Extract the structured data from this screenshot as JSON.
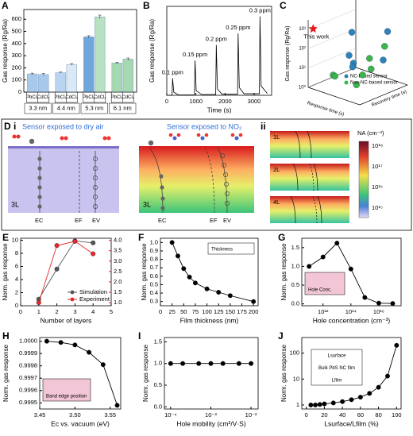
{
  "chart_data": [
    {
      "label": "A",
      "type": "bar",
      "ylabel": "Gas response (Rg/Ra)",
      "categories": [
        "PbCl₂",
        "CdCl₂",
        "PbCl₂",
        "CdCl₂",
        "PbCl₂",
        "CdCl₂",
        "PbCl₂",
        "CdCl₂"
      ],
      "groups": [
        "3.3 nm",
        "4.4 nm",
        "5.3 nm",
        "6.1 nm"
      ],
      "colors": [
        "#a9c9ea",
        "#a9c9ea",
        "#b8d4f0",
        "#dbe8f5",
        "#6fa6dc",
        "#b9e0c0",
        "#a6d9b0",
        "#a6d9b0"
      ],
      "values": [
        150,
        145,
        160,
        228,
        455,
        620,
        240,
        272
      ],
      "errors": [
        6,
        8,
        5,
        7,
        10,
        14,
        6,
        9
      ],
      "ylim": [
        0,
        680
      ],
      "yticks": [
        0,
        100,
        200,
        300,
        400,
        500,
        600
      ]
    },
    {
      "label": "B",
      "type": "line",
      "markers": false,
      "xlabel": "Time (s)",
      "ylabel": "Gas response (Rg/Ra)",
      "x": [
        0,
        180,
        200,
        240,
        400,
        950,
        970,
        1010,
        1200,
        1680,
        1700,
        1740,
        1900,
        2430,
        2450,
        2490,
        2650,
        3180,
        3200,
        3240,
        3450
      ],
      "series": [
        {
          "color": "#000000",
          "values": [
            0,
            0,
            220,
            40,
            5,
            5,
            450,
            60,
            10,
            10,
            650,
            80,
            15,
            15,
            800,
            100,
            20,
            20,
            1020,
            120,
            25
          ]
        }
      ],
      "peak_labels": [
        "0.1 ppm",
        "0.15 ppm",
        "0.2 ppm",
        "0.25 ppm",
        "0.3 ppm"
      ],
      "xlim": [
        0,
        3600
      ],
      "xticks": [
        0,
        1000,
        2000,
        3000
      ],
      "ylim": [
        0,
        1150
      ]
    },
    {
      "label": "C",
      "type": "scatter3d",
      "zlabel": "Gas response (Rg/Ra)",
      "xlabel": "Response time (s)",
      "ylabel": "Recovery time (s)",
      "xlim": [
        0,
        100
      ],
      "ylim": [
        0,
        100
      ],
      "zlim": [
        1,
        3000
      ],
      "zlog": true,
      "zticks": [
        {
          "value": 1,
          "label": "10⁰"
        },
        {
          "value": 10,
          "label": "10¹"
        },
        {
          "value": 100,
          "label": "10²"
        },
        {
          "value": 1000,
          "label": "10³"
        }
      ],
      "series": [
        {
          "name": "NC-based sensor",
          "color": "#2b83ba",
          "marker": "circle",
          "x": [
            20,
            60,
            80,
            40,
            70,
            90
          ],
          "y": [
            70,
            30,
            80,
            50,
            10,
            60
          ],
          "z": [
            200,
            30,
            600,
            8,
            150,
            40
          ]
        },
        {
          "name": "Non-NC-based sensor",
          "color": "#3cb44b",
          "marker": "circle",
          "x": [
            30,
            50,
            85,
            65,
            15,
            45,
            75
          ],
          "y": [
            20,
            60,
            40,
            90,
            40,
            80,
            20
          ],
          "z": [
            5,
            3,
            20,
            60,
            2,
            12,
            4
          ]
        },
        {
          "name": "This work",
          "color": "#e41a1c",
          "marker": "star",
          "x": [
            5
          ],
          "y": [
            5
          ],
          "z": [
            1020
          ]
        }
      ]
    },
    {
      "label": "E",
      "type": "line",
      "markers": true,
      "xlabel": "Number of layers",
      "ylabel": "Norm. gas response",
      "x": [
        1,
        2,
        3,
        4
      ],
      "series": [
        {
          "name": "Simulation",
          "color": "#555555",
          "values": [
            1.0,
            5.6,
            9.9,
            9.6
          ]
        },
        {
          "name": "Experiment",
          "color": "#e8262b",
          "axis": "y2",
          "values": [
            1.0,
            3.75,
            3.95,
            3.35
          ]
        }
      ],
      "xlim": [
        0,
        5
      ],
      "xticks": [
        0,
        1,
        2,
        3,
        4,
        5
      ],
      "ylim": [
        0,
        10.3
      ],
      "yticks": [
        0,
        2,
        4,
        6,
        8,
        10
      ],
      "y2lim": [
        0.85,
        4.1
      ],
      "y2color": "#e8262b",
      "y2ticks": [
        {
          "value": 1,
          "label": "1.0"
        },
        1.5,
        {
          "value": 2,
          "label": "2.0"
        },
        2.5,
        {
          "value": 3,
          "label": "3.0"
        },
        3.5,
        {
          "value": 4,
          "label": "4.0"
        }
      ],
      "legend": "lower right"
    },
    {
      "label": "F",
      "type": "line",
      "markers": true,
      "xlabel": "Film thickness (nm)",
      "ylabel": "Norm. gas response",
      "x": [
        25,
        37.5,
        50,
        62.5,
        75,
        100,
        125,
        150,
        200
      ],
      "series": [
        {
          "color": "#000000",
          "values": [
            1.0,
            0.84,
            0.69,
            0.59,
            0.52,
            0.45,
            0.41,
            0.37,
            0.3
          ]
        }
      ],
      "xlim": [
        0,
        210
      ],
      "xticks": [
        0,
        25,
        50,
        75,
        100,
        125,
        150,
        175,
        200
      ],
      "ylim": [
        0.25,
        1.05
      ],
      "yticks": [
        0.3,
        0.4,
        0.5,
        0.6,
        0.7,
        0.8,
        0.9,
        {
          "value": 1,
          "label": "1.0"
        }
      ],
      "inset_labels": [
        "Thickness"
      ]
    },
    {
      "label": "G",
      "type": "line",
      "markers": true,
      "xlabel": "Hole concentration (cm⁻³)",
      "ylabel": "Norm. gas response",
      "x": [
        100000000000.0,
        1000000000000.0,
        10000000000000.0,
        100000000000000.0,
        1000000000000000.0,
        1e+16,
        1e+17
      ],
      "series": [
        {
          "color": "#000000",
          "values": [
            1.0,
            1.25,
            1.62,
            0.93,
            0.17,
            0.02,
            0.01
          ]
        }
      ],
      "xlog": true,
      "xlim": [
        30000000000.0,
        4e+17
      ],
      "xticks": [
        {
          "value": 1000000000000.0,
          "label": "10¹²"
        },
        {
          "value": 100000000000000.0,
          "label": "10¹⁴"
        },
        {
          "value": 1e+16,
          "label": "10¹⁶"
        }
      ],
      "ylim": [
        -0.05,
        1.75
      ],
      "yticks": [
        {
          "value": 0,
          "label": "0.0"
        },
        0.5,
        {
          "value": 1,
          "label": "1.0"
        },
        1.5
      ],
      "inset_labels": [
        "Hole Conc."
      ]
    },
    {
      "label": "H",
      "type": "line",
      "markers": true,
      "xlabel": "Ec vs. vacuum (eV)",
      "ylabel": "Norm. gas response",
      "x": [
        3.46,
        3.48,
        3.5,
        3.52,
        3.54,
        3.56
      ],
      "series": [
        {
          "color": "#000000",
          "values": [
            1.0,
            0.99999,
            0.99997,
            0.99991,
            0.99981,
            0.99948
          ]
        }
      ],
      "xlim": [
        3.45,
        3.565
      ],
      "xticks": [
        3.45,
        {
          "value": 3.5,
          "label": "3.50"
        },
        3.55
      ],
      "ylim": [
        0.99945,
        1.00003
      ],
      "yticks": [
        0.9995,
        0.9996,
        0.9997,
        0.9998,
        0.9999,
        {
          "value": 1,
          "label": "1.0000"
        }
      ],
      "inset_labels": [
        "Band edge position"
      ]
    },
    {
      "label": "I",
      "type": "line",
      "markers": true,
      "xlabel": "Hole mobility (cm²/V·S)",
      "ylabel": "Norm. gas response",
      "x": [
        0.0001,
        0.0002,
        0.0005,
        0.001,
        0.002,
        0.005,
        0.01
      ],
      "series": [
        {
          "color": "#000000",
          "values": [
            1.0,
            1.0,
            1.0,
            1.0,
            1.0,
            1.0,
            1.0
          ]
        }
      ],
      "xlog": true,
      "xlim": [
        7e-05,
        0.015
      ],
      "xticks": [
        {
          "value": 0.0001,
          "label": "10⁻⁴"
        },
        {
          "value": 0.001,
          "label": "10⁻³"
        },
        {
          "value": 0.01,
          "label": "10⁻²"
        }
      ],
      "ylim": [
        -0.05,
        1.6
      ],
      "yticks": [
        {
          "value": 0,
          "label": "0.0"
        },
        0.5,
        {
          "value": 1,
          "label": "1.0"
        },
        1.5
      ]
    },
    {
      "label": "J",
      "type": "line",
      "markers": true,
      "xlabel": "Lsurface/Lfilm (%)",
      "ylabel": "Norm. gas response",
      "x": [
        5,
        10,
        15,
        20,
        30,
        40,
        50,
        60,
        70,
        80,
        90,
        100
      ],
      "series": [
        {
          "color": "#000000",
          "values": [
            1.0,
            1.0,
            1.05,
            1.1,
            1.2,
            1.35,
            1.6,
            2.0,
            2.8,
            4.8,
            13,
            200
          ]
        }
      ],
      "ylog": true,
      "ylim": [
        0.7,
        400
      ],
      "yticks": [
        1,
        10,
        100
      ],
      "xlim": [
        -5,
        105
      ],
      "xticks": [
        0,
        20,
        40,
        60,
        80,
        100
      ],
      "inset_labels": [
        "Lsurface",
        "Bulk PbS NC film",
        "Lfilm"
      ]
    }
  ],
  "diagram": {
    "label": "D",
    "part_i": "i",
    "part_ii": "ii",
    "dry_air": "Sensor exposed to dry air",
    "no2": "Sensor exposed to NO₂",
    "layer": "3L",
    "ec": "EC",
    "ef": "EF",
    "ev": "EV",
    "layers": [
      "1L",
      "2L",
      "4L"
    ],
    "colorbar_title": "NA (cm⁻³)",
    "colorbar_ticks": [
      "10¹⁸",
      "10¹⁷",
      "10¹⁶",
      "10¹⁵"
    ]
  }
}
